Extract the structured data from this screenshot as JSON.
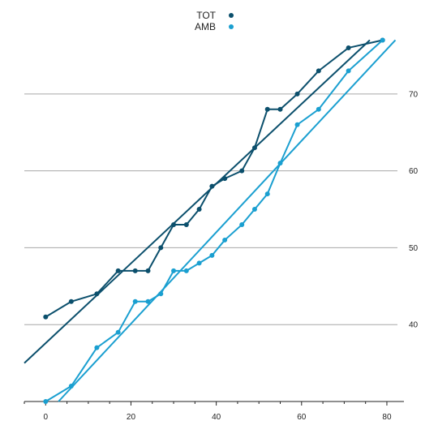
{
  "chart_data": {
    "type": "scatter",
    "title": "",
    "xlabel": "",
    "ylabel": "",
    "xlim": [
      -5,
      84
    ],
    "ylim": [
      30,
      78
    ],
    "xticks": [
      0,
      20,
      40,
      60,
      80
    ],
    "yticks": [
      40,
      50,
      60,
      70
    ],
    "grid": "horizontal",
    "y_axis_side": "right",
    "legend": "top-center",
    "series": [
      {
        "name": "TOT",
        "color": "#0b4f6c",
        "x": [
          0,
          6,
          12,
          17,
          21,
          24,
          27,
          30,
          33,
          36,
          39,
          42,
          46,
          49,
          52,
          55,
          59,
          64,
          71,
          79
        ],
        "y": [
          41,
          43,
          44,
          47,
          47,
          47,
          50,
          53,
          53,
          55,
          58,
          59,
          60,
          63,
          68,
          68,
          70,
          73,
          76,
          77
        ],
        "trend": {
          "x": [
            -5,
            76
          ],
          "y": [
            35,
            77
          ]
        }
      },
      {
        "name": "AMB",
        "color": "#1a9fd0",
        "x": [
          0,
          6,
          12,
          17,
          21,
          24,
          27,
          30,
          33,
          36,
          39,
          42,
          46,
          49,
          52,
          55,
          59,
          64,
          71,
          79
        ],
        "y": [
          30,
          32,
          37,
          39,
          43,
          43,
          44,
          47,
          47,
          48,
          49,
          51,
          53,
          55,
          57,
          61,
          66,
          68,
          73,
          77
        ],
        "trend": {
          "x": [
            3,
            82
          ],
          "y": [
            30,
            77
          ]
        }
      }
    ]
  }
}
